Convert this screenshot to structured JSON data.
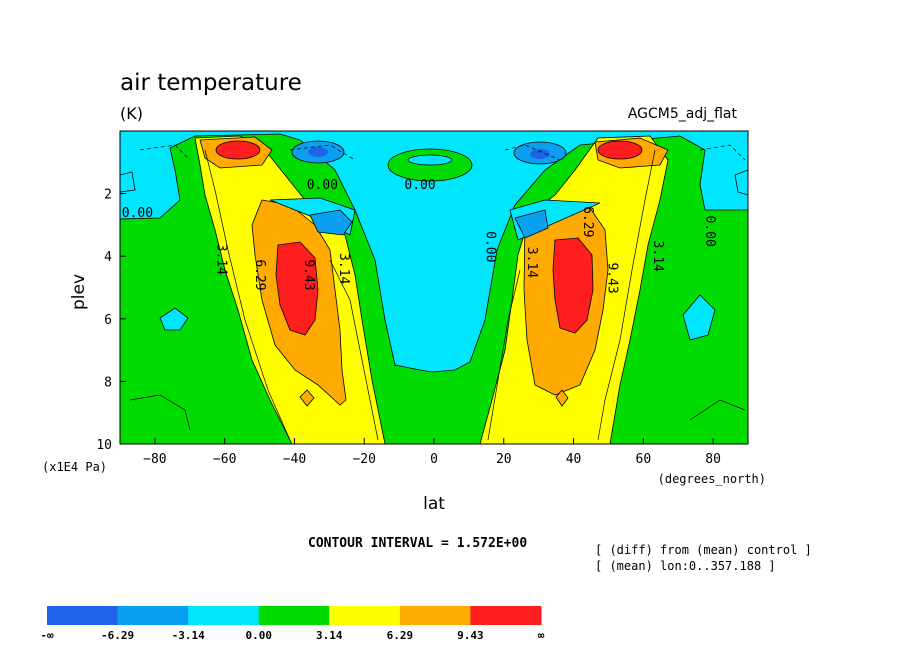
{
  "chart_data": {
    "type": "heatmap",
    "subtype": "filled-contour",
    "title": "air temperature",
    "units": "(K)",
    "dataset": "AGCM5_adj_flat",
    "xlabel": "lat",
    "x_units": "(degrees_north)",
    "ylabel": "plev",
    "y_units": "(x1E4 Pa)",
    "xlim": [
      -90,
      90
    ],
    "ylim": [
      10,
      0
    ],
    "x_ticks": [
      -80,
      -60,
      -40,
      -20,
      0,
      20,
      40,
      60,
      80
    ],
    "y_ticks": [
      2,
      4,
      6,
      8,
      10
    ],
    "x_tick_labels": [
      "−80",
      "−60",
      "−40",
      "−20",
      "0",
      "20",
      "40",
      "60",
      "80"
    ],
    "y_tick_labels": [
      "2",
      "4",
      "6",
      "8",
      "10"
    ],
    "contour_interval_label": "CONTOUR INTERVAL = 1.572E+00",
    "notes": [
      "[ (diff) from (mean) control ]",
      "[ (mean) lon:0..357.188 ]"
    ],
    "contour_labels": [
      {
        "text": "0.00",
        "lat": -32,
        "plev": 1.85
      },
      {
        "text": "0.00",
        "lat": -4,
        "plev": 1.85
      },
      {
        "text": "0.00",
        "lat": -85,
        "plev": 2.75
      },
      {
        "text": "0.00",
        "lat": 15,
        "plev": 3.7
      },
      {
        "text": "0.00",
        "lat": 78,
        "plev": 3.2
      },
      {
        "text": "3.14",
        "lat": -62,
        "plev": 4.1
      },
      {
        "text": "6.29",
        "lat": -51,
        "plev": 4.6
      },
      {
        "text": "9.43",
        "lat": -37,
        "plev": 4.6
      },
      {
        "text": "3.14",
        "lat": -27,
        "plev": 4.4
      },
      {
        "text": "3.14",
        "lat": 27,
        "plev": 4.2
      },
      {
        "text": "6.29",
        "lat": 43,
        "plev": 2.9
      },
      {
        "text": "9.43",
        "lat": 50,
        "plev": 4.7
      },
      {
        "text": "3.14",
        "lat": 63,
        "plev": 4.0
      }
    ],
    "colorbar": {
      "levels": [
        "-∞",
        "-6.29",
        "-3.14",
        "0.00",
        "3.14",
        "6.29",
        "9.43",
        "∞"
      ],
      "colors": [
        "#1e64e6",
        "#0aa0f0",
        "#00e6ff",
        "#00dc00",
        "#ffff00",
        "#ffaa00",
        "#ff1e1e"
      ]
    }
  }
}
